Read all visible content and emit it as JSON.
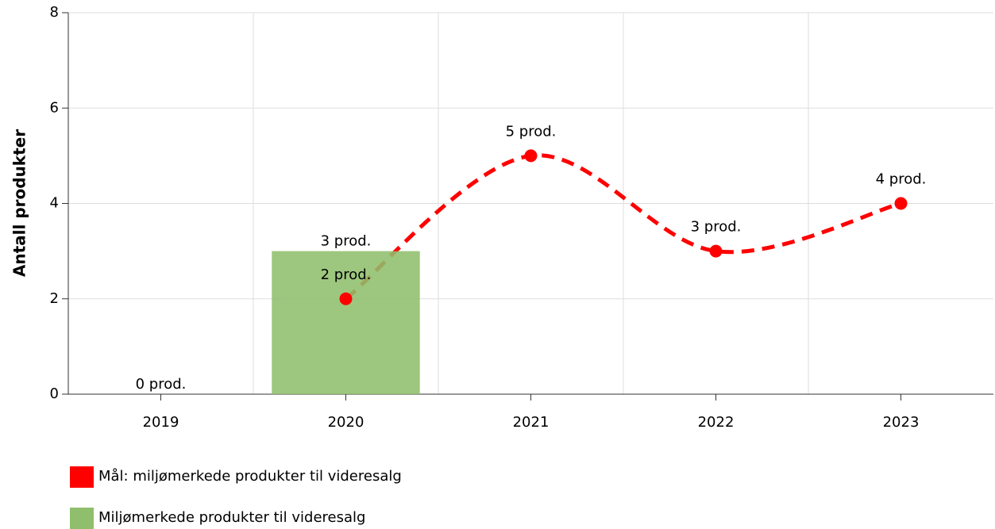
{
  "chart_data": {
    "type": "combo",
    "y_label": "Antall produkter",
    "categories": [
      "2019",
      "2020",
      "2021",
      "2022",
      "2023"
    ],
    "ylim": [
      0,
      8
    ],
    "yticks": [
      0,
      2,
      4,
      6,
      8
    ],
    "grid": true,
    "series": [
      {
        "name": "Mål: miljømerkede produkter til videresalg",
        "type": "line",
        "color": "#ff0000",
        "dashed": true,
        "smooth": true,
        "values": [
          null,
          2,
          5,
          3,
          4
        ],
        "value_labels": [
          null,
          "2 prod.",
          "5 prod.",
          "3 prod.",
          "4 prod."
        ]
      },
      {
        "name": "Miljømerkede produkter til videresalg",
        "type": "bar",
        "color": "#8fbf6c",
        "values": [
          0,
          3,
          null,
          null,
          null
        ],
        "value_labels": [
          "0 prod.",
          "3 prod.",
          null,
          null,
          null
        ]
      }
    ]
  }
}
